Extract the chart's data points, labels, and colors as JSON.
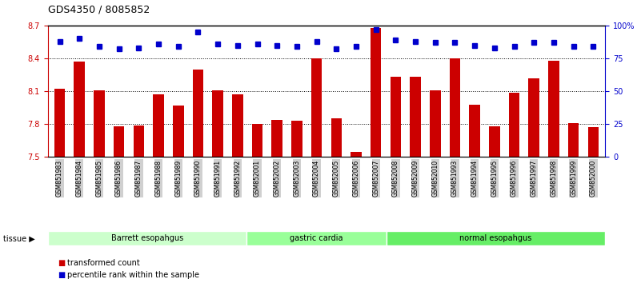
{
  "title": "GDS4350 / 8085852",
  "categories": [
    "GSM851983",
    "GSM851984",
    "GSM851985",
    "GSM851986",
    "GSM851987",
    "GSM851988",
    "GSM851989",
    "GSM851990",
    "GSM851991",
    "GSM851992",
    "GSM852001",
    "GSM852002",
    "GSM852003",
    "GSM852004",
    "GSM852005",
    "GSM852006",
    "GSM852007",
    "GSM852008",
    "GSM852009",
    "GSM852010",
    "GSM851993",
    "GSM851994",
    "GSM851995",
    "GSM851996",
    "GSM851997",
    "GSM851998",
    "GSM851999",
    "GSM852000"
  ],
  "bar_values": [
    8.12,
    8.37,
    8.11,
    7.78,
    7.79,
    8.07,
    7.97,
    8.3,
    8.11,
    8.07,
    7.8,
    7.84,
    7.83,
    8.4,
    7.85,
    7.55,
    8.68,
    8.23,
    8.23,
    8.11,
    8.4,
    7.98,
    7.78,
    8.09,
    8.22,
    8.38,
    7.81,
    7.77
  ],
  "percentile_values": [
    88,
    90,
    84,
    82,
    83,
    86,
    84,
    95,
    86,
    85,
    86,
    85,
    84,
    88,
    82,
    84,
    97,
    89,
    88,
    87,
    87,
    85,
    83,
    84,
    87,
    87,
    84,
    84
  ],
  "bar_color": "#cc0000",
  "dot_color": "#0000cc",
  "ylim_left": [
    7.5,
    8.7
  ],
  "ylim_right": [
    0,
    100
  ],
  "yticks_left": [
    7.5,
    7.8,
    8.1,
    8.4,
    8.7
  ],
  "yticks_right": [
    0,
    25,
    50,
    75,
    100
  ],
  "ytick_labels_right": [
    "0",
    "25",
    "50",
    "75",
    "100%"
  ],
  "groups": [
    {
      "label": "Barrett esopahgus",
      "start": 0,
      "end": 10,
      "color": "#ccffcc"
    },
    {
      "label": "gastric cardia",
      "start": 10,
      "end": 17,
      "color": "#99ff99"
    },
    {
      "label": "normal esopahgus",
      "start": 17,
      "end": 28,
      "color": "#66ee66"
    }
  ],
  "legend": [
    {
      "label": "transformed count",
      "color": "#cc0000"
    },
    {
      "label": "percentile rank within the sample",
      "color": "#0000cc"
    }
  ],
  "background_color": "#ffffff",
  "xticklabel_bg": "#d0d0d0"
}
